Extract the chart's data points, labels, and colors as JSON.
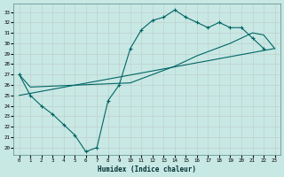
{
  "bg_color": "#c8e8e4",
  "line_color": "#006666",
  "grid_color": "#b0d8d4",
  "xlabel": "Humidex (Indice chaleur)",
  "xlim": [
    -0.5,
    23.5
  ],
  "ylim": [
    19.3,
    33.8
  ],
  "yticks": [
    20,
    21,
    22,
    23,
    24,
    25,
    26,
    27,
    28,
    29,
    30,
    31,
    32,
    33
  ],
  "xticks": [
    0,
    1,
    2,
    3,
    4,
    5,
    6,
    7,
    8,
    9,
    10,
    11,
    12,
    13,
    14,
    15,
    16,
    17,
    18,
    19,
    20,
    21,
    22,
    23
  ],
  "line1_x": [
    0,
    1,
    2,
    3,
    4,
    5,
    6,
    7,
    8,
    9,
    10,
    11,
    12,
    13,
    14,
    15,
    16,
    17,
    18,
    19,
    20,
    21,
    22
  ],
  "line1_y": [
    27.0,
    25.0,
    24.0,
    23.2,
    22.2,
    21.2,
    19.6,
    20.0,
    24.5,
    26.0,
    29.5,
    31.3,
    32.2,
    32.5,
    33.2,
    32.5,
    32.0,
    31.5,
    32.0,
    31.5,
    31.5,
    30.5,
    29.5
  ],
  "line2_x": [
    0,
    1,
    10,
    14,
    16,
    19,
    21,
    22,
    23
  ],
  "line2_y": [
    27.0,
    25.8,
    26.2,
    27.8,
    28.8,
    30.0,
    31.0,
    30.8,
    29.5
  ],
  "line3_x": [
    0,
    23
  ],
  "line3_y": [
    25.0,
    29.5
  ]
}
